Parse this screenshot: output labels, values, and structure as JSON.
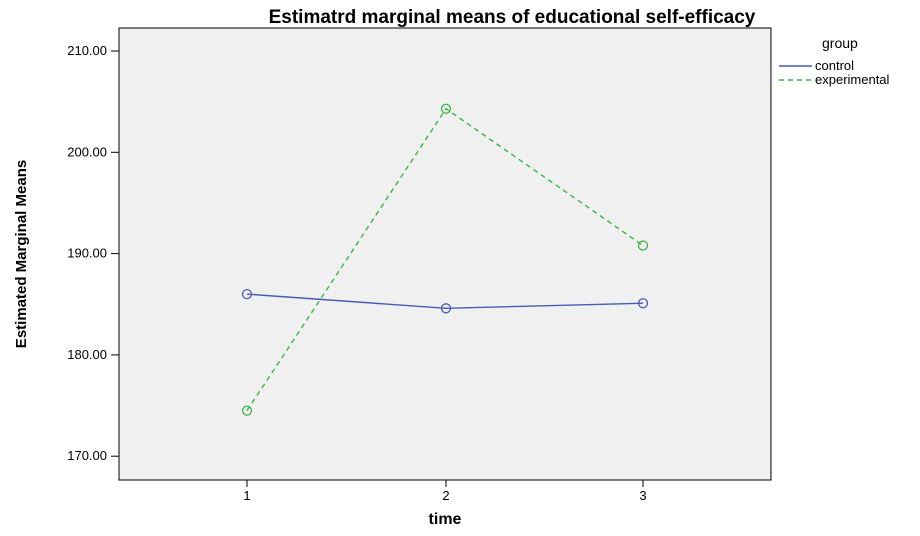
{
  "chart_data": {
    "type": "line",
    "title": "Estimatrd marginal means of educational self-efficacy",
    "xlabel": "time",
    "ylabel": "Estimated Marginal Means",
    "categories": [
      "1",
      "2",
      "3"
    ],
    "ylim": [
      168,
      212
    ],
    "yticks": [
      170,
      180,
      190,
      200,
      210
    ],
    "ytick_labels": [
      "170.00",
      "180.00",
      "190.00",
      "200.00",
      "210.00"
    ],
    "grid": false,
    "legend": {
      "title": "group",
      "position": "top-right, outside plot"
    },
    "plot_background": "#f0f0f0",
    "series": [
      {
        "name": "control",
        "values": [
          186.0,
          184.6,
          185.1
        ],
        "color": "#4b5bb5",
        "line_style": "solid",
        "marker": "open-circle"
      },
      {
        "name": "experimental",
        "values": [
          174.5,
          204.3,
          190.8
        ],
        "color": "#3cb34a",
        "line_style": "dashed",
        "marker": "open-circle"
      }
    ]
  }
}
